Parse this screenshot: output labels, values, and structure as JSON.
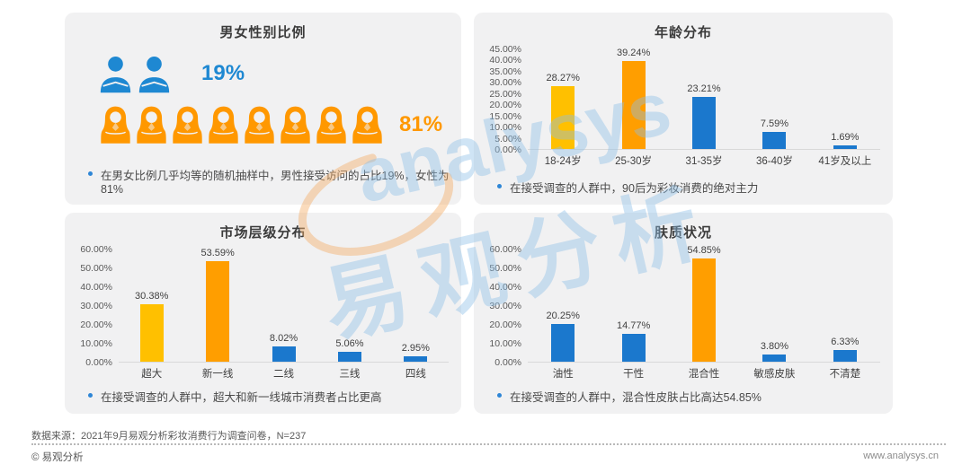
{
  "watermark": {
    "latin": "analysys",
    "cjk": "易观分析"
  },
  "chart_data": [
    {
      "type": "pictograph",
      "title": "男女性别比例",
      "categories": [
        "男性",
        "女性"
      ],
      "values": [
        19,
        81
      ],
      "labels": [
        "19%",
        "81%"
      ],
      "icon_counts": [
        2,
        8
      ],
      "colors": [
        "#1E88D2",
        "#FF9800"
      ],
      "note": "在男女比例几乎均等的随机抽样中，男性接受访问的占比19%，女性为81%"
    },
    {
      "type": "bar",
      "title": "年龄分布",
      "categories": [
        "18-24岁",
        "25-30岁",
        "31-35岁",
        "36-40岁",
        "41岁及以上"
      ],
      "values": [
        28.27,
        39.24,
        23.21,
        7.59,
        1.69
      ],
      "labels": [
        "28.27%",
        "39.24%",
        "23.21%",
        "7.59%",
        "1.69%"
      ],
      "colors": [
        "#FFC000",
        "#FF9E00",
        "#1B78CD",
        "#1B78CD",
        "#1B78CD"
      ],
      "ylim": [
        0,
        45
      ],
      "ystep": 5,
      "grid": "off",
      "legend": "none",
      "note": "在接受调查的人群中，90后为彩妆消费的绝对主力"
    },
    {
      "type": "bar",
      "title": "市场层级分布",
      "categories": [
        "超大",
        "新一线",
        "二线",
        "三线",
        "四线"
      ],
      "values": [
        30.38,
        53.59,
        8.02,
        5.06,
        2.95
      ],
      "labels": [
        "30.38%",
        "53.59%",
        "8.02%",
        "5.06%",
        "2.95%"
      ],
      "colors": [
        "#FFC000",
        "#FF9E00",
        "#1B78CD",
        "#1B78CD",
        "#1B78CD"
      ],
      "ylim": [
        0,
        60
      ],
      "ystep": 10,
      "grid": "off",
      "legend": "none",
      "note": "在接受调查的人群中，超大和新一线城市消费者占比更高"
    },
    {
      "type": "bar",
      "title": "肤质状况",
      "categories": [
        "油性",
        "干性",
        "混合性",
        "敏感皮肤",
        "不清楚"
      ],
      "values": [
        20.25,
        14.77,
        54.85,
        3.8,
        6.33
      ],
      "labels": [
        "20.25%",
        "14.77%",
        "54.85%",
        "3.80%",
        "6.33%"
      ],
      "colors": [
        "#1B78CD",
        "#1B78CD",
        "#FF9E00",
        "#1B78CD",
        "#1B78CD"
      ],
      "ylim": [
        0,
        60
      ],
      "ystep": 10,
      "grid": "off",
      "legend": "none",
      "note": "在接受调查的人群中，混合性皮肤占比高达54.85%"
    }
  ],
  "footer": {
    "source": "数据来源：2021年9月易观分析彩妆消费行为调查问卷，N=237",
    "copyright": "© 易观分析",
    "site": "www.analysys.cn"
  }
}
